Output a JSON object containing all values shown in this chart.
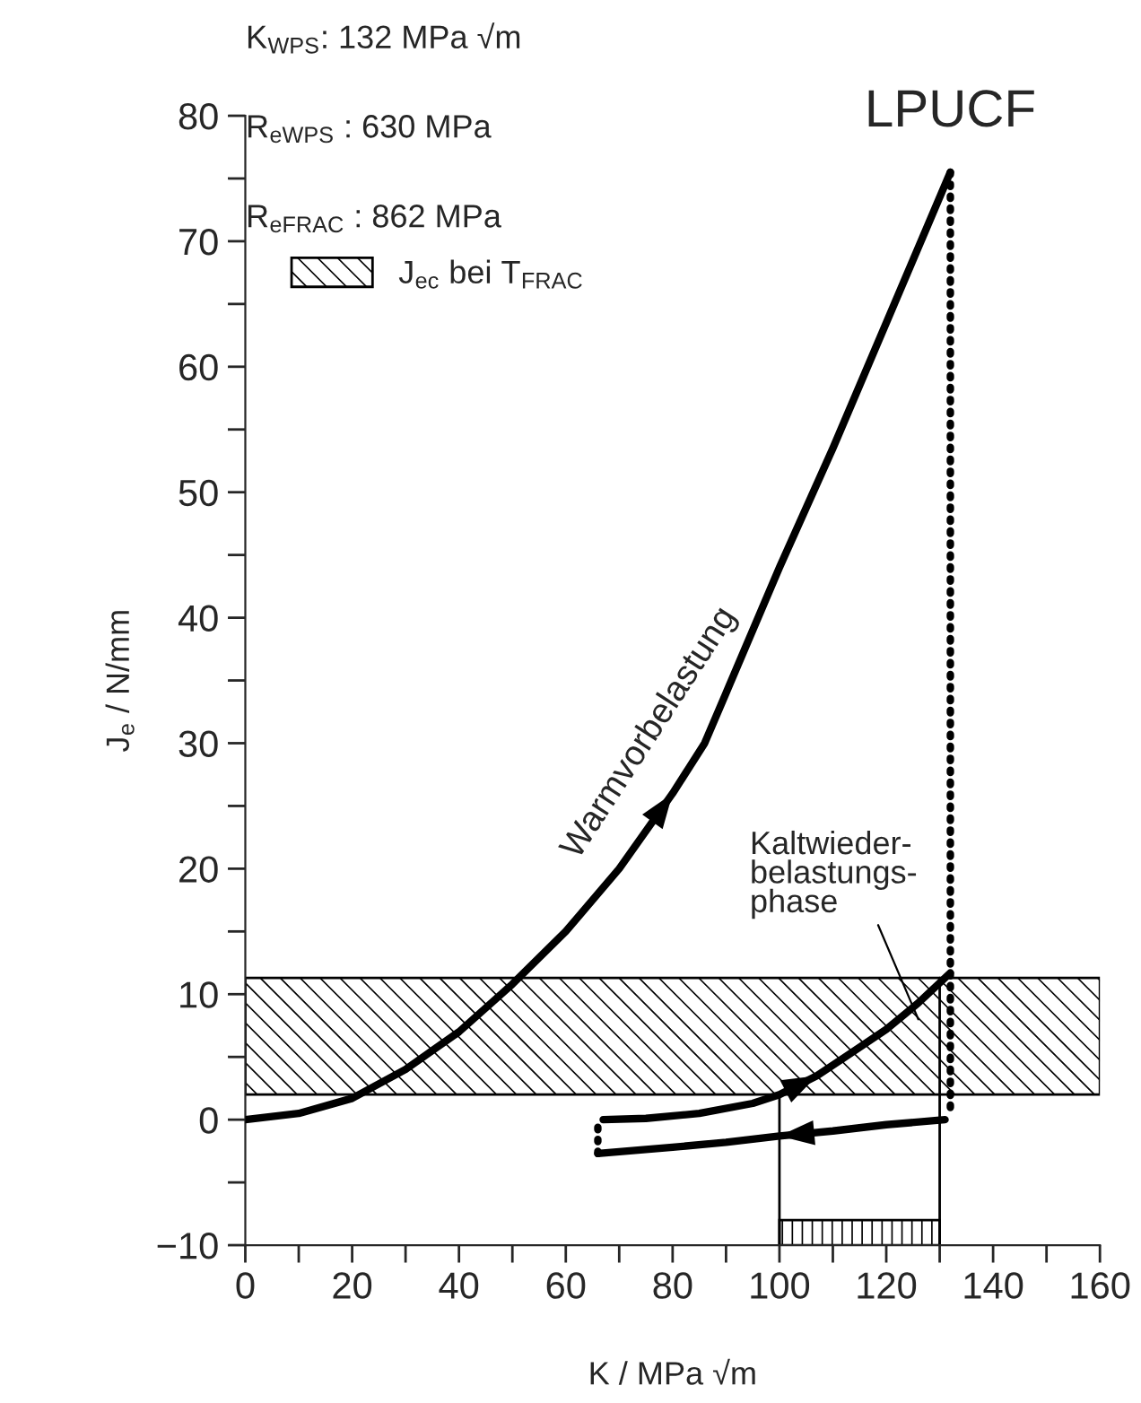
{
  "chart_data": {
    "type": "line",
    "xlabel": "K / MPa √m",
    "ylabel": "J$_{e}$ / N/mm",
    "xlim": [
      0,
      160
    ],
    "ylim": [
      -10,
      80
    ],
    "xticks": [
      0,
      {
        "value": 10,
        "label": null
      },
      20,
      {
        "value": 30,
        "label": null
      },
      40,
      {
        "value": 50,
        "label": null
      },
      60,
      {
        "value": 70,
        "label": null
      },
      80,
      {
        "value": 90,
        "label": null
      },
      100,
      {
        "value": 110,
        "label": null
      },
      120,
      {
        "value": 130,
        "label": null
      },
      140,
      {
        "value": 150,
        "label": null
      },
      160
    ],
    "yticks": [
      {
        "value": -10,
        "label": "−10"
      },
      {
        "value": -5,
        "label": null
      },
      0,
      {
        "value": 5,
        "label": null
      },
      10,
      {
        "value": 15,
        "label": null
      },
      20,
      {
        "value": 25,
        "label": null
      },
      30,
      {
        "value": 35,
        "label": null
      },
      40,
      {
        "value": 45,
        "label": null
      },
      50,
      {
        "value": 55,
        "label": null
      },
      60,
      {
        "value": 65,
        "label": null
      },
      70,
      {
        "value": 75,
        "label": null
      },
      80
    ],
    "grid": false,
    "legend": "top left",
    "marker": "none",
    "series": [
      {
        "color": "#000000",
        "line_style": "solid",
        "x": [
          0,
          10,
          20,
          30,
          40,
          50,
          60,
          70,
          80,
          86,
          90,
          100,
          110,
          120,
          126,
          132
        ],
        "values": [
          0,
          0.5,
          1.7,
          4,
          7,
          10.8,
          15,
          20,
          26,
          30,
          34,
          44,
          53.5,
          63.5,
          69.5,
          75.5
        ]
      },
      {
        "color": "#000000",
        "line_style": "dotted",
        "x": [
          132,
          132
        ],
        "values": [
          75.5,
          0.5
        ]
      },
      {
        "color": "#000000",
        "line_style": "solid",
        "x": [
          131,
          120,
          110,
          100,
          90,
          80,
          66
        ],
        "values": [
          0,
          -0.4,
          -0.9,
          -1.3,
          -1.8,
          -2.2,
          -2.7
        ]
      },
      {
        "color": "#000000",
        "line_style": "dotted",
        "x": [
          66,
          66
        ],
        "values": [
          -2.7,
          0
        ]
      },
      {
        "color": "#000000",
        "line_style": "solid",
        "x": [
          67,
          75,
          85,
          95,
          100,
          107,
          113,
          120,
          126,
          132
        ],
        "values": [
          0,
          0.1,
          0.5,
          1.3,
          2,
          3.5,
          5.2,
          7.2,
          9.3,
          11.7
        ]
      },
      {
        "color": "#000000",
        "line_style": "solid",
        "x": [
          100,
          100
        ],
        "values": [
          -10,
          2
        ]
      },
      {
        "color": "#000000",
        "line_style": "solid",
        "x": [
          130,
          130
        ],
        "values": [
          -10,
          11.3
        ]
      }
    ],
    "bands": [
      {
        "axis": "y",
        "from": 2,
        "to": 11.3,
        "label": "J$_{ec}$ bei T$_{FRAC}$",
        "color": "#000000"
      }
    ],
    "annotations": [
      "K$_{WPS}$: 132 MPa √m",
      "R$_{eWPS}$ : 630 MPa",
      "R$_{eFRAC}$ : 862 MPa",
      {
        "text": "LPUCF",
        "x": 132,
        "y": 75.5
      },
      {
        "text": "Warmvorbelastung",
        "x": 86,
        "y": 30
      },
      {
        "text": "Kaltwieder-\nbelastungs-\nphase",
        "x": 126,
        "y": 8
      }
    ]
  }
}
